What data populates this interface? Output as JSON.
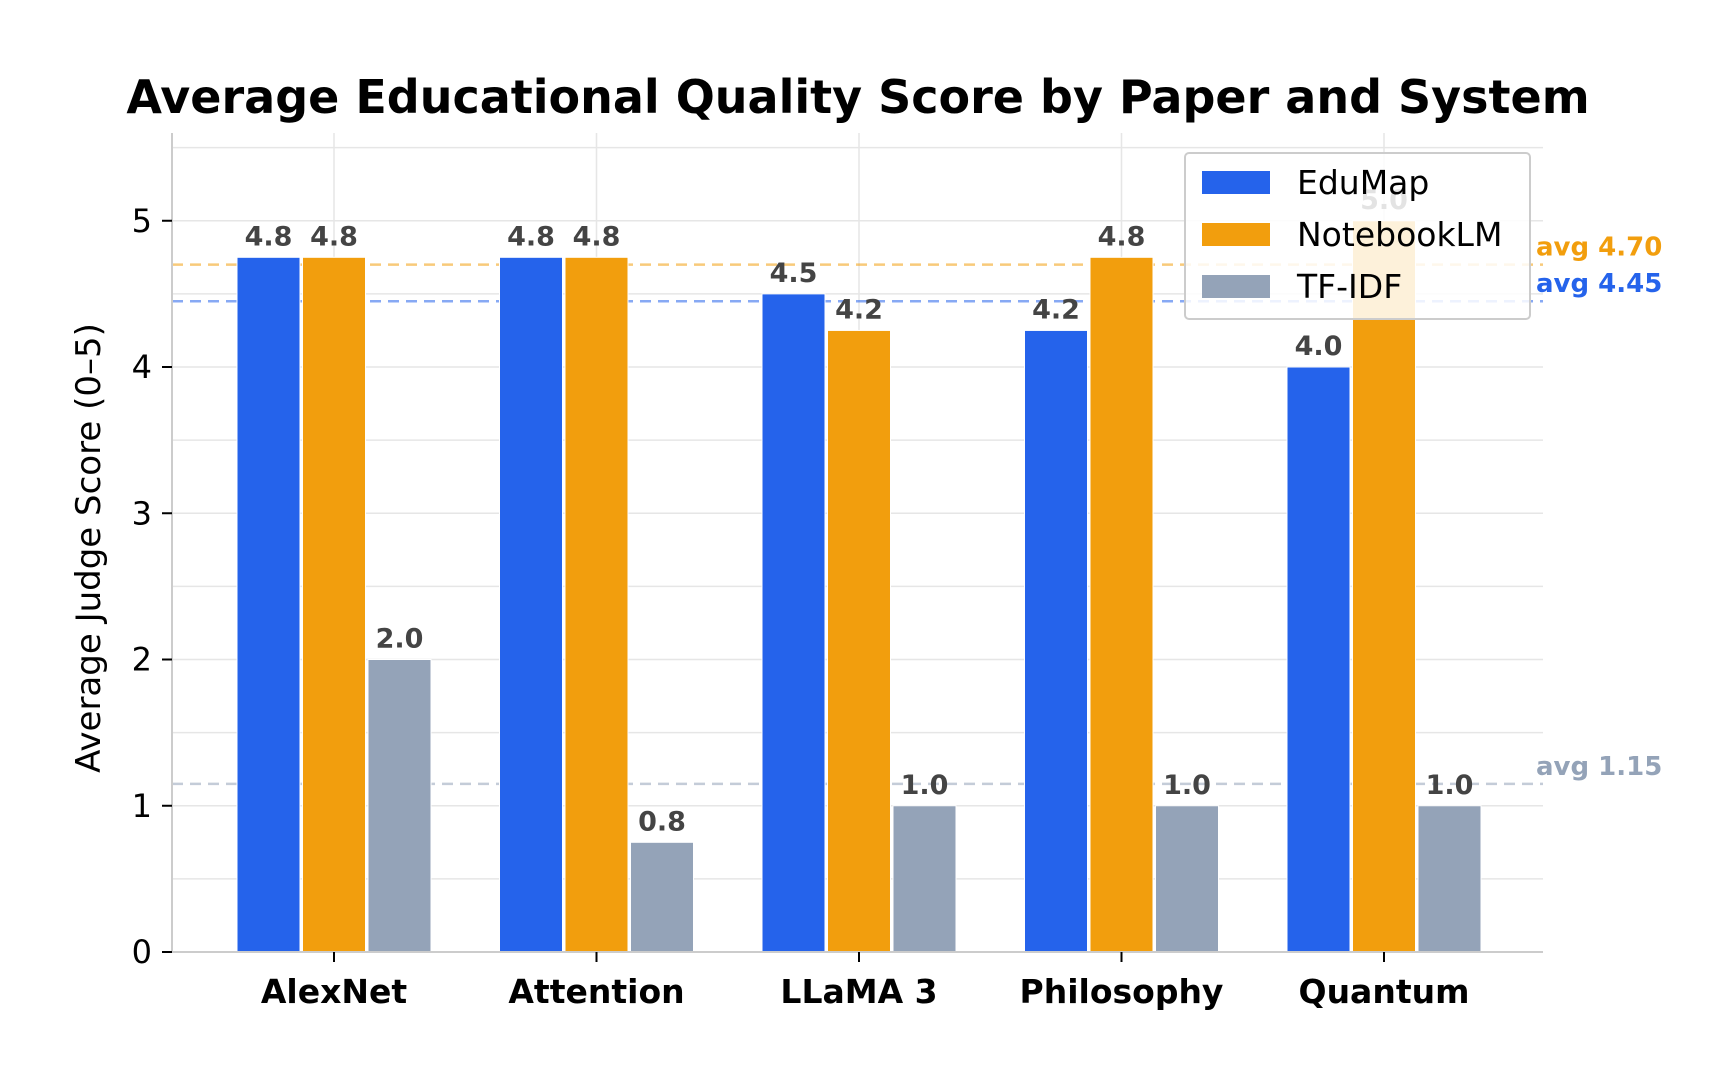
{
  "chart_data": {
    "type": "bar",
    "title": "Average Educational Quality Score by Paper and System",
    "xlabel": "",
    "ylabel": "Average Judge Score (0–5)",
    "ylim": [
      0,
      5.6
    ],
    "yticks": [
      "0",
      "1",
      "2",
      "3",
      "4",
      "5"
    ],
    "grid": true,
    "legend_position": "top-right",
    "categories": [
      "AlexNet",
      "Attention",
      "LLaMA 3",
      "Philosophy",
      "Quantum"
    ],
    "series": [
      {
        "name": "EduMap",
        "color": "#2563eb",
        "values": [
          4.75,
          4.75,
          4.5,
          4.25,
          4.0
        ],
        "labels": [
          "4.8",
          "4.8",
          "4.5",
          "4.2",
          "4.0"
        ]
      },
      {
        "name": "NotebookLM",
        "color": "#f29e0d",
        "values": [
          4.75,
          4.75,
          4.25,
          4.75,
          5.0
        ],
        "labels": [
          "4.8",
          "4.8",
          "4.2",
          "4.8",
          "5.0"
        ]
      },
      {
        "name": "TF-IDF",
        "color": "#94a3b8",
        "values": [
          2.0,
          0.75,
          1.0,
          1.0,
          1.0
        ],
        "labels": [
          "2.0",
          "0.8",
          "1.0",
          "1.0",
          "1.0"
        ]
      }
    ],
    "averages": [
      {
        "series": "NotebookLM",
        "value": 4.7,
        "label": "avg 4.70",
        "color": "#f29e0d"
      },
      {
        "series": "EduMap",
        "value": 4.45,
        "label": "avg 4.45",
        "color": "#2563eb"
      },
      {
        "series": "TF-IDF",
        "value": 1.15,
        "label": "avg 1.15",
        "color": "#94a3b8"
      }
    ]
  }
}
